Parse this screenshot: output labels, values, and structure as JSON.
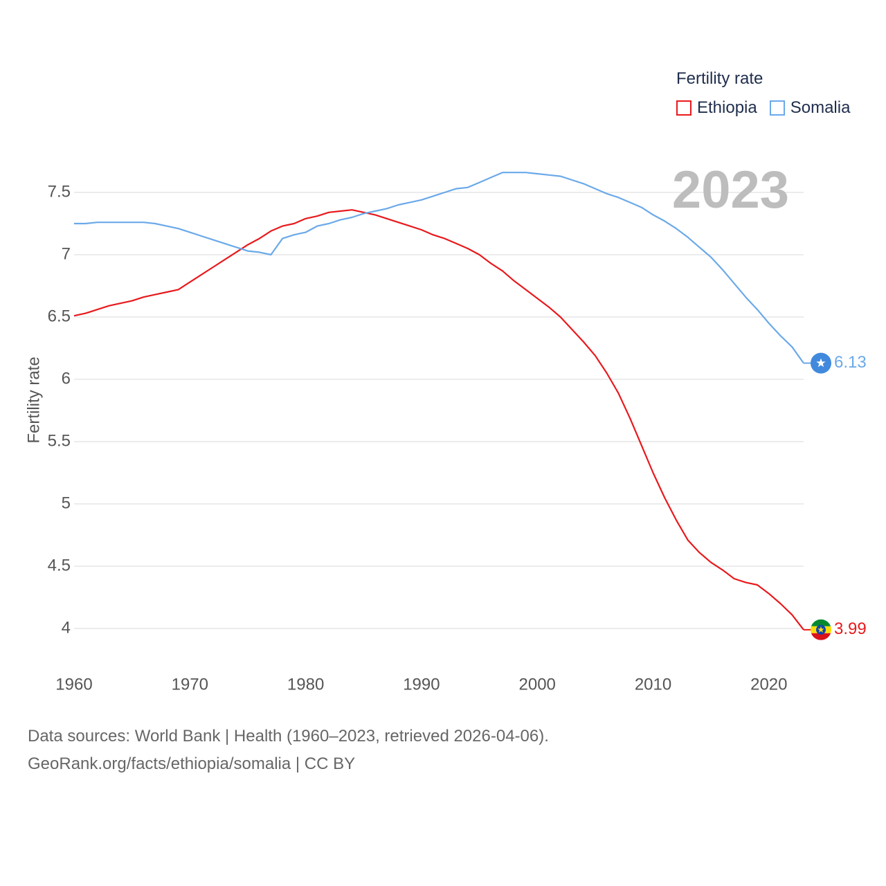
{
  "legend": {
    "title": "Fertility rate",
    "items": [
      {
        "label": "Ethiopia",
        "color": "#e8191c"
      },
      {
        "label": "Somalia",
        "color": "#6aa9e9"
      }
    ]
  },
  "year_overlay": "2023",
  "footer": {
    "line1": "Data sources: World Bank | Health (1960–2023, retrieved 2026-04-06).",
    "line2": "GeoRank.org/facts/ethiopia/somalia | CC BY"
  },
  "chart_data": {
    "type": "line",
    "title": "",
    "xlabel": "",
    "ylabel": "Fertility rate",
    "xlim": [
      1960,
      2023
    ],
    "ylim": [
      3.7,
      7.9
    ],
    "x_ticks": [
      1960,
      1970,
      1980,
      1990,
      2000,
      2010,
      2020
    ],
    "y_ticks": [
      4,
      4.5,
      5,
      5.5,
      6,
      6.5,
      7,
      7.5
    ],
    "y_tick_labels": [
      "4",
      "4.5",
      "5",
      "5.5",
      "6",
      "6.5",
      "7",
      "7.5"
    ],
    "x": [
      1960,
      1961,
      1962,
      1963,
      1964,
      1965,
      1966,
      1967,
      1968,
      1969,
      1970,
      1971,
      1972,
      1973,
      1974,
      1975,
      1976,
      1977,
      1978,
      1979,
      1980,
      1981,
      1982,
      1983,
      1984,
      1985,
      1986,
      1987,
      1988,
      1989,
      1990,
      1991,
      1992,
      1993,
      1994,
      1995,
      1996,
      1997,
      1998,
      1999,
      2000,
      2001,
      2002,
      2003,
      2004,
      2005,
      2006,
      2007,
      2008,
      2009,
      2010,
      2011,
      2012,
      2013,
      2014,
      2015,
      2016,
      2017,
      2018,
      2019,
      2020,
      2021,
      2022,
      2023
    ],
    "series": [
      {
        "name": "Ethiopia",
        "color": "#e8191c",
        "end_label": "3.99",
        "values": [
          6.51,
          6.53,
          6.56,
          6.59,
          6.61,
          6.63,
          6.66,
          6.68,
          6.7,
          6.72,
          6.78,
          6.84,
          6.9,
          6.96,
          7.02,
          7.08,
          7.13,
          7.19,
          7.23,
          7.25,
          7.29,
          7.31,
          7.34,
          7.35,
          7.36,
          7.34,
          7.32,
          7.29,
          7.26,
          7.23,
          7.2,
          7.16,
          7.13,
          7.09,
          7.05,
          7.0,
          6.93,
          6.87,
          6.79,
          6.72,
          6.65,
          6.58,
          6.5,
          6.4,
          6.3,
          6.19,
          6.05,
          5.89,
          5.69,
          5.47,
          5.25,
          5.05,
          4.87,
          4.71,
          4.61,
          4.53,
          4.47,
          4.4,
          4.37,
          4.35,
          4.28,
          4.2,
          4.11,
          3.99
        ]
      },
      {
        "name": "Somalia",
        "color": "#6aa9e9",
        "end_label": "6.13",
        "values": [
          7.25,
          7.25,
          7.26,
          7.26,
          7.26,
          7.26,
          7.26,
          7.25,
          7.23,
          7.21,
          7.18,
          7.15,
          7.12,
          7.09,
          7.06,
          7.03,
          7.02,
          7.0,
          7.13,
          7.16,
          7.18,
          7.23,
          7.25,
          7.28,
          7.3,
          7.33,
          7.35,
          7.37,
          7.4,
          7.42,
          7.44,
          7.47,
          7.5,
          7.53,
          7.54,
          7.58,
          7.62,
          7.66,
          7.66,
          7.66,
          7.65,
          7.64,
          7.63,
          7.6,
          7.57,
          7.53,
          7.49,
          7.46,
          7.42,
          7.38,
          7.32,
          7.27,
          7.21,
          7.14,
          7.06,
          6.98,
          6.88,
          6.77,
          6.66,
          6.56,
          6.45,
          6.35,
          6.26,
          6.13
        ]
      }
    ]
  }
}
